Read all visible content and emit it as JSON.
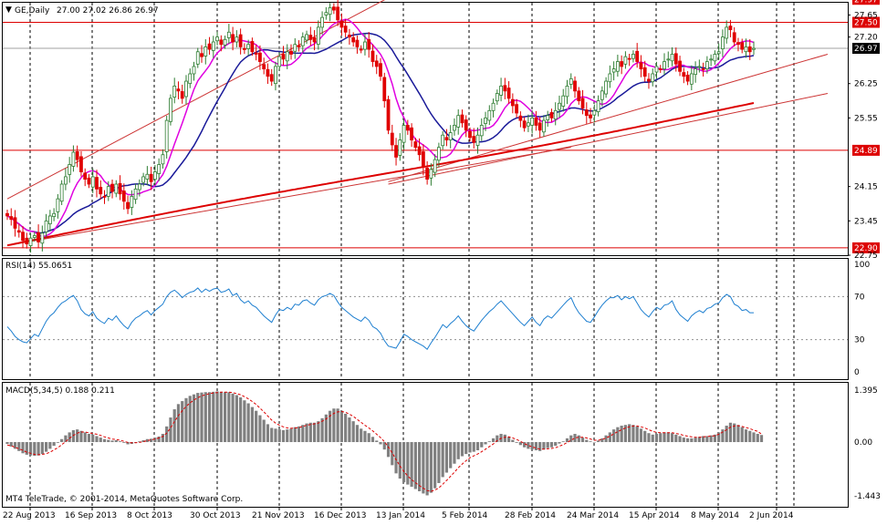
{
  "window": {
    "dropdown_glyph": "▼",
    "symbol_label": "GE,Daily",
    "ohlc_text": "27.00 27.02 26.86 26.97",
    "copyright": "MT4 TeleTrade, © 2001-2014, MetaQuotes Software Corp."
  },
  "colors": {
    "background": "#ffffff",
    "grid": "#000000",
    "bull": "#2e7d32",
    "bear": "#e00000",
    "ma_fast": "#e000e0",
    "ma_mid": "#1a1a99",
    "ma_slow": "#dd0000",
    "hline": "#dd0000",
    "trendline": "#cc3333",
    "rsi_line": "#1e7fd0",
    "macd_hist": "#808080",
    "macd_signal": "#dd0000",
    "current_price_box": "#000000",
    "level_box": "#dd0000"
  },
  "chart_data": [
    {
      "type": "candlestick",
      "panel": "price",
      "symbol": "GE",
      "timeframe": "Daily",
      "ylim": [
        22.75,
        27.9
      ],
      "y_ticks": [
        "27.65",
        "27.20",
        "26.25",
        "25.55",
        "24.15",
        "23.45",
        "22.75"
      ],
      "x_ticks": [
        "22 Aug 2013",
        "16 Sep 2013",
        "8 Oct 2013",
        "30 Oct 2013",
        "21 Nov 2013",
        "16 Dec 2013",
        "13 Jan 2014",
        "5 Feb 2014",
        "28 Feb 2014",
        "24 Mar 2014",
        "15 Apr 2014",
        "8 May 2014",
        "2 Jun 2014"
      ],
      "levels": [
        {
          "value": 27.97,
          "label": "27.97"
        },
        {
          "value": 27.5,
          "label": "27.50"
        },
        {
          "value": 24.89,
          "label": "24.89"
        },
        {
          "value": 22.9,
          "label": "22.90"
        }
      ],
      "current_price": {
        "value": 26.97,
        "label": "26.97"
      },
      "close": [
        23.55,
        23.48,
        23.3,
        23.22,
        23.05,
        22.98,
        23.1,
        23.15,
        23.02,
        23.2,
        23.45,
        23.55,
        23.6,
        23.9,
        24.2,
        24.35,
        24.6,
        24.85,
        24.7,
        24.45,
        24.3,
        24.2,
        24.35,
        24.1,
        24.0,
        23.95,
        24.15,
        24.05,
        24.2,
        24.0,
        23.85,
        23.7,
        23.95,
        24.1,
        24.2,
        24.35,
        24.4,
        24.25,
        24.45,
        24.6,
        24.8,
        25.5,
        25.95,
        26.2,
        26.1,
        25.95,
        26.3,
        26.45,
        26.6,
        26.9,
        26.8,
        27.0,
        26.95,
        27.1,
        27.2,
        27.05,
        27.15,
        27.3,
        27.1,
        27.2,
        27.0,
        26.95,
        27.05,
        26.9,
        26.85,
        26.7,
        26.55,
        26.4,
        26.3,
        26.6,
        26.8,
        26.75,
        26.9,
        26.85,
        27.05,
        27.0,
        27.2,
        27.25,
        27.15,
        27.1,
        27.4,
        27.6,
        27.7,
        27.8,
        27.75,
        27.55,
        27.4,
        27.3,
        27.2,
        27.1,
        27.0,
        26.95,
        27.1,
        26.95,
        26.7,
        26.6,
        26.4,
        25.9,
        25.3,
        25.0,
        24.75,
        25.1,
        25.4,
        25.3,
        25.1,
        24.95,
        24.8,
        24.55,
        24.3,
        24.5,
        24.7,
        24.95,
        25.2,
        25.1,
        25.25,
        25.4,
        25.6,
        25.45,
        25.3,
        25.15,
        25.05,
        25.2,
        25.4,
        25.55,
        25.7,
        25.85,
        26.05,
        26.2,
        26.1,
        25.95,
        25.8,
        25.65,
        25.5,
        25.35,
        25.45,
        25.55,
        25.4,
        25.3,
        25.5,
        25.6,
        25.55,
        25.7,
        25.85,
        26.0,
        26.2,
        26.35,
        26.1,
        25.9,
        25.75,
        25.6,
        25.55,
        25.7,
        25.9,
        26.1,
        26.3,
        26.45,
        26.55,
        26.7,
        26.6,
        26.8,
        26.75,
        26.85,
        26.7,
        26.55,
        26.4,
        26.3,
        26.45,
        26.6,
        26.55,
        26.7,
        26.75,
        26.85,
        26.65,
        26.5,
        26.4,
        26.3,
        26.45,
        26.55,
        26.6,
        26.55,
        26.7,
        26.75,
        26.85,
        26.9,
        27.2,
        27.4,
        27.35,
        27.1,
        27.05,
        26.95,
        27.0,
        26.9,
        26.97
      ]
    },
    {
      "type": "line",
      "panel": "rsi",
      "title": "RSI(14) 55.0651",
      "ylim": [
        0,
        100
      ],
      "y_ticks": [
        "100",
        "70",
        "30",
        "0"
      ],
      "levels": [
        70,
        30
      ],
      "y": [
        42,
        38,
        33,
        30,
        28,
        27,
        31,
        35,
        33,
        40,
        47,
        52,
        55,
        60,
        64,
        66,
        69,
        71,
        66,
        58,
        54,
        52,
        56,
        50,
        47,
        45,
        50,
        48,
        52,
        47,
        43,
        40,
        46,
        50,
        52,
        55,
        57,
        53,
        57,
        60,
        63,
        70,
        74,
        76,
        73,
        69,
        72,
        74,
        75,
        78,
        74,
        77,
        75,
        77,
        78,
        74,
        75,
        77,
        71,
        73,
        67,
        64,
        66,
        62,
        60,
        56,
        52,
        49,
        46,
        53,
        58,
        57,
        60,
        58,
        63,
        62,
        66,
        67,
        64,
        62,
        67,
        70,
        71,
        73,
        71,
        65,
        60,
        57,
        54,
        51,
        49,
        47,
        51,
        48,
        42,
        40,
        36,
        29,
        24,
        23,
        22,
        28,
        35,
        33,
        30,
        28,
        26,
        24,
        21,
        27,
        32,
        38,
        44,
        41,
        45,
        48,
        52,
        47,
        43,
        40,
        38,
        43,
        48,
        52,
        56,
        59,
        63,
        66,
        62,
        58,
        54,
        50,
        46,
        43,
        47,
        51,
        46,
        43,
        49,
        52,
        50,
        54,
        58,
        62,
        66,
        69,
        61,
        55,
        51,
        47,
        46,
        51,
        57,
        62,
        66,
        69,
        69,
        71,
        67,
        70,
        68,
        70,
        64,
        58,
        54,
        51,
        56,
        60,
        58,
        62,
        63,
        66,
        58,
        53,
        50,
        47,
        52,
        55,
        57,
        55,
        59,
        60,
        63,
        64,
        69,
        72,
        70,
        63,
        61,
        57,
        58,
        55,
        55
      ]
    },
    {
      "type": "bar",
      "panel": "macd",
      "title": "MACD(5,34,5) 0.188 0.211",
      "ylim": [
        -1.443,
        1.395
      ],
      "y_ticks": [
        "1.395",
        "0.00",
        "-1.443"
      ],
      "histogram": [
        -0.05,
        -0.12,
        -0.18,
        -0.24,
        -0.3,
        -0.34,
        -0.36,
        -0.37,
        -0.36,
        -0.32,
        -0.26,
        -0.18,
        -0.1,
        -0.02,
        0.08,
        0.18,
        0.26,
        0.32,
        0.34,
        0.3,
        0.26,
        0.22,
        0.2,
        0.16,
        0.12,
        0.08,
        0.06,
        0.04,
        0.05,
        0.02,
        -0.02,
        -0.06,
        -0.05,
        -0.02,
        0.02,
        0.05,
        0.08,
        0.09,
        0.12,
        0.15,
        0.22,
        0.42,
        0.66,
        0.88,
        1.02,
        1.1,
        1.18,
        1.24,
        1.28,
        1.32,
        1.33,
        1.34,
        1.34,
        1.35,
        1.36,
        1.35,
        1.34,
        1.34,
        1.3,
        1.26,
        1.2,
        1.12,
        1.04,
        0.94,
        0.84,
        0.72,
        0.6,
        0.48,
        0.38,
        0.36,
        0.34,
        0.32,
        0.34,
        0.36,
        0.4,
        0.42,
        0.46,
        0.5,
        0.52,
        0.52,
        0.56,
        0.64,
        0.74,
        0.84,
        0.9,
        0.9,
        0.84,
        0.76,
        0.66,
        0.56,
        0.46,
        0.36,
        0.3,
        0.24,
        0.14,
        0.04,
        -0.06,
        -0.2,
        -0.4,
        -0.62,
        -0.84,
        -0.98,
        -1.08,
        -1.14,
        -1.2,
        -1.26,
        -1.32,
        -1.38,
        -1.43,
        -1.36,
        -1.24,
        -1.1,
        -0.94,
        -0.82,
        -0.7,
        -0.58,
        -0.46,
        -0.38,
        -0.32,
        -0.28,
        -0.26,
        -0.22,
        -0.14,
        -0.06,
        0.02,
        0.1,
        0.18,
        0.22,
        0.2,
        0.14,
        0.06,
        -0.02,
        -0.08,
        -0.14,
        -0.18,
        -0.2,
        -0.22,
        -0.24,
        -0.2,
        -0.16,
        -0.14,
        -0.1,
        -0.04,
        0.02,
        0.1,
        0.18,
        0.22,
        0.18,
        0.12,
        0.06,
        0.02,
        0.0,
        0.04,
        0.1,
        0.18,
        0.26,
        0.34,
        0.4,
        0.44,
        0.46,
        0.48,
        0.46,
        0.42,
        0.36,
        0.3,
        0.24,
        0.2,
        0.22,
        0.24,
        0.26,
        0.26,
        0.24,
        0.2,
        0.16,
        0.12,
        0.1,
        0.1,
        0.12,
        0.14,
        0.16,
        0.16,
        0.18,
        0.2,
        0.26,
        0.34,
        0.44,
        0.52,
        0.5,
        0.46,
        0.4,
        0.34,
        0.3,
        0.26,
        0.22,
        0.19
      ],
      "signal": [
        -0.08,
        -0.1,
        -0.14,
        -0.18,
        -0.22,
        -0.27,
        -0.3,
        -0.33,
        -0.34,
        -0.33,
        -0.31,
        -0.27,
        -0.21,
        -0.15,
        -0.07,
        0.01,
        0.1,
        0.18,
        0.24,
        0.27,
        0.27,
        0.25,
        0.23,
        0.21,
        0.18,
        0.14,
        0.11,
        0.08,
        0.07,
        0.05,
        0.02,
        -0.01,
        -0.02,
        -0.02,
        -0.01,
        0.01,
        0.04,
        0.06,
        0.08,
        0.11,
        0.15,
        0.24,
        0.38,
        0.55,
        0.71,
        0.84,
        0.96,
        1.05,
        1.13,
        1.19,
        1.24,
        1.27,
        1.3,
        1.32,
        1.33,
        1.34,
        1.34,
        1.34,
        1.33,
        1.3,
        1.27,
        1.22,
        1.16,
        1.09,
        1.01,
        0.91,
        0.81,
        0.7,
        0.59,
        0.51,
        0.45,
        0.41,
        0.38,
        0.37,
        0.38,
        0.39,
        0.42,
        0.45,
        0.47,
        0.49,
        0.51,
        0.56,
        0.62,
        0.7,
        0.77,
        0.81,
        0.82,
        0.8,
        0.75,
        0.69,
        0.61,
        0.53,
        0.45,
        0.38,
        0.3,
        0.21,
        0.12,
        0.01,
        -0.13,
        -0.29,
        -0.47,
        -0.64,
        -0.79,
        -0.91,
        -1.01,
        -1.09,
        -1.17,
        -1.24,
        -1.3,
        -1.32,
        -1.29,
        -1.23,
        -1.13,
        -1.03,
        -0.92,
        -0.81,
        -0.69,
        -0.59,
        -0.5,
        -0.42,
        -0.37,
        -0.32,
        -0.26,
        -0.19,
        -0.12,
        -0.05,
        0.04,
        0.1,
        0.13,
        0.14,
        0.11,
        0.07,
        0.02,
        -0.04,
        -0.09,
        -0.13,
        -0.16,
        -0.19,
        -0.19,
        -0.18,
        -0.17,
        -0.15,
        -0.11,
        -0.07,
        -0.01,
        0.05,
        0.11,
        0.13,
        0.13,
        0.11,
        0.08,
        0.05,
        0.05,
        0.07,
        0.11,
        0.16,
        0.22,
        0.28,
        0.33,
        0.38,
        0.41,
        0.43,
        0.43,
        0.41,
        0.38,
        0.33,
        0.29,
        0.26,
        0.25,
        0.25,
        0.25,
        0.25,
        0.23,
        0.21,
        0.18,
        0.16,
        0.14,
        0.13,
        0.13,
        0.14,
        0.15,
        0.16,
        0.17,
        0.21,
        0.27,
        0.33,
        0.4,
        0.43,
        0.44,
        0.42,
        0.39,
        0.36,
        0.32,
        0.29,
        0.21
      ]
    }
  ]
}
